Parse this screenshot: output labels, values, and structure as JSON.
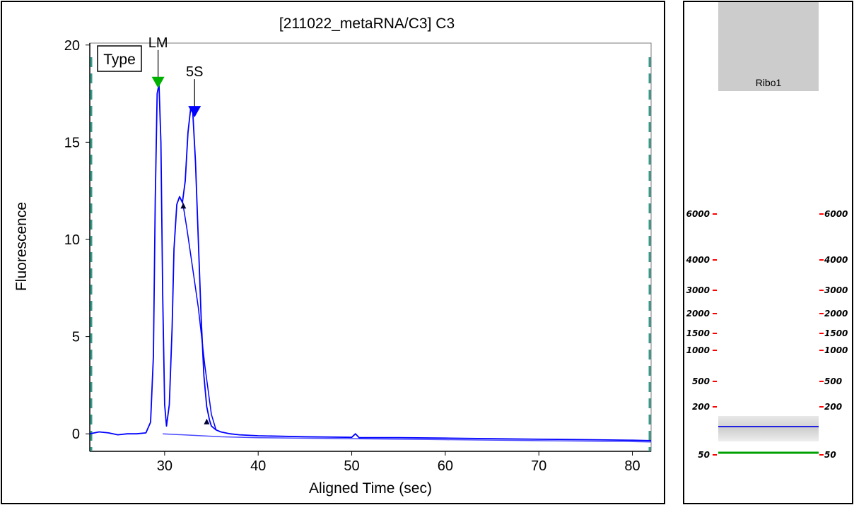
{
  "chart_data": {
    "type": "line",
    "title": "[211022_metaRNA/C3] C3",
    "xlabel": "Aligned Time (sec)",
    "ylabel": "Fluorescence",
    "xlim": [
      22,
      82
    ],
    "ylim": [
      -0.9,
      20.1
    ],
    "xticks": [
      30,
      40,
      50,
      60,
      70,
      80
    ],
    "yticks": [
      0,
      5,
      10,
      15,
      20
    ],
    "grid": false,
    "legend": {
      "label": "Type",
      "placement": "top-left"
    },
    "colors": {
      "trace": "#0000ff",
      "baseline": "#4a4aff",
      "lower_marker": "#00b000",
      "peak_marker": "#0000ff",
      "frame": "#7a7a7a",
      "edge_dash": "#3a9a8a"
    },
    "series": [
      {
        "x": [
          22,
          23,
          24,
          25,
          26,
          27,
          28,
          28.5,
          28.8,
          29.0,
          29.2,
          29.4,
          29.6,
          29.8,
          30.0,
          30.2,
          30.5,
          30.8,
          31.0,
          31.3,
          31.6,
          31.9,
          32.2,
          32.5,
          32.8,
          33.0,
          33.3,
          33.6,
          33.9,
          34.2,
          34.5,
          34.8,
          35.0,
          35.5,
          36,
          37,
          38,
          40,
          45,
          50,
          50.4,
          50.8,
          55,
          60,
          65,
          70,
          75,
          80,
          82
        ],
        "y": [
          0.0,
          0.1,
          0.05,
          -0.05,
          0.0,
          0.0,
          0.05,
          0.6,
          4.0,
          12.0,
          17.5,
          18.0,
          15.0,
          7.0,
          1.5,
          0.4,
          1.5,
          5.5,
          9.5,
          11.8,
          12.2,
          11.9,
          13.0,
          15.5,
          16.8,
          16.6,
          14.0,
          10.0,
          6.0,
          3.0,
          1.4,
          0.7,
          0.4,
          0.2,
          0.1,
          0.0,
          -0.05,
          -0.1,
          -0.15,
          -0.18,
          0.0,
          -0.2,
          -0.2,
          -0.22,
          -0.25,
          -0.28,
          -0.3,
          -0.33,
          -0.35
        ]
      },
      {
        "x": [
          31.9,
          32.4,
          33.0,
          33.6,
          34.3,
          35.0,
          35.5
        ],
        "y": [
          12.0,
          10.5,
          8.5,
          6.5,
          3.5,
          1.0,
          0.2
        ]
      },
      {
        "x": [
          29.8,
          34.0,
          36.0,
          40,
          50,
          60,
          70,
          80,
          82
        ],
        "y": [
          0.0,
          -0.1,
          -0.15,
          -0.2,
          -0.25,
          -0.3,
          -0.35,
          -0.4,
          -0.42
        ]
      }
    ],
    "annotations": [
      {
        "text": "LM",
        "x": 29.3,
        "y": 18.0
      },
      {
        "text": "5S",
        "x": 33.2,
        "y": 16.5
      }
    ]
  },
  "gel": {
    "sample_label": "Ribo1",
    "ladder": [
      "6000",
      "4000",
      "3000",
      "2000",
      "1500",
      "1000",
      "500",
      "200",
      "50"
    ],
    "ladder_marker_color": "#ff0000",
    "upper_band_color": "#2020e0",
    "lower_band_color": "#00a000"
  }
}
